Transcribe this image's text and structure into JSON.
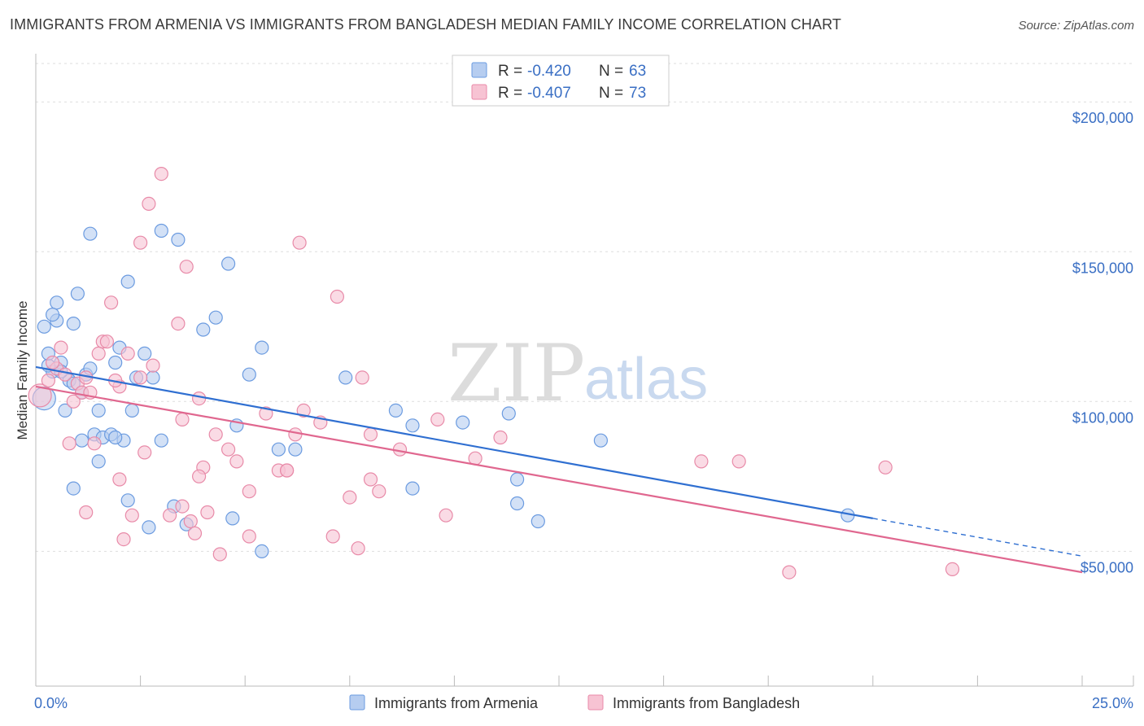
{
  "header": {
    "title": "IMMIGRANTS FROM ARMENIA VS IMMIGRANTS FROM BANGLADESH MEDIAN FAMILY INCOME CORRELATION CHART",
    "source": "Source: ZipAtlas.com"
  },
  "watermark": {
    "zip": "ZIP",
    "atlas": "atlas"
  },
  "chart_data": {
    "type": "scatter",
    "title": "IMMIGRANTS FROM ARMENIA VS IMMIGRANTS FROM BANGLADESH MEDIAN FAMILY INCOME CORRELATION CHART",
    "ylabel": "Median Family Income",
    "xlim": [
      0,
      25
    ],
    "ylim": [
      5000,
      215000
    ],
    "y_ticks": [
      {
        "value": 50000,
        "label": "$50,000"
      },
      {
        "value": 100000,
        "label": "$100,000"
      },
      {
        "value": 150000,
        "label": "$150,000"
      },
      {
        "value": 200000,
        "label": "$200,000"
      }
    ],
    "x_tick_labels": {
      "left": "0.0%",
      "right": "25.0%"
    },
    "x_minor_ticks": [
      0,
      2.5,
      5,
      7.5,
      10,
      12.5,
      15,
      17.5,
      20,
      22.5,
      25
    ],
    "grid": true,
    "legend_position": "top-center",
    "legend": [
      {
        "r_label": "R = ",
        "r_value": "-0.420",
        "n_label": "N = ",
        "n_value": "63"
      },
      {
        "r_label": "R = ",
        "r_value": "-0.407",
        "n_label": "N = ",
        "n_value": "73"
      }
    ],
    "series": [
      {
        "name": "Immigrants from Armenia",
        "color": "#6b9be0",
        "fill": "#b6cdf0",
        "trend_color": "#2f6fd1",
        "trend": {
          "x0": 0,
          "y0": 111500,
          "x1": 20,
          "y1": 61000,
          "dash_to_x": 25,
          "dash_to_y": 48400
        },
        "points": [
          [
            0.2,
            101000
          ],
          [
            0.4,
            110000
          ],
          [
            0.3,
            112000
          ],
          [
            0.5,
            133000
          ],
          [
            0.8,
            107000
          ],
          [
            0.6,
            113000
          ],
          [
            0.9,
            106000
          ],
          [
            0.5,
            127000
          ],
          [
            0.3,
            116000
          ],
          [
            0.2,
            125000
          ],
          [
            0.4,
            129000
          ],
          [
            0.6,
            110000
          ],
          [
            0.9,
            126000
          ],
          [
            1.0,
            136000
          ],
          [
            1.2,
            109000
          ],
          [
            1.1,
            103000
          ],
          [
            1.3,
            111000
          ],
          [
            1.5,
            97000
          ],
          [
            1.4,
            89000
          ],
          [
            1.6,
            88000
          ],
          [
            1.8,
            89000
          ],
          [
            2.0,
            118000
          ],
          [
            1.9,
            113000
          ],
          [
            2.1,
            87000
          ],
          [
            1.3,
            156000
          ],
          [
            2.2,
            140000
          ],
          [
            2.3,
            97000
          ],
          [
            2.4,
            108000
          ],
          [
            2.6,
            116000
          ],
          [
            2.8,
            108000
          ],
          [
            3.0,
            157000
          ],
          [
            3.4,
            154000
          ],
          [
            3.0,
            87000
          ],
          [
            4.0,
            124000
          ],
          [
            4.3,
            128000
          ],
          [
            4.6,
            146000
          ],
          [
            4.8,
            92000
          ],
          [
            5.1,
            109000
          ],
          [
            5.4,
            118000
          ],
          [
            5.8,
            84000
          ],
          [
            6.2,
            84000
          ],
          [
            7.4,
            108000
          ],
          [
            8.6,
            97000
          ],
          [
            9.0,
            92000
          ],
          [
            10.2,
            93000
          ],
          [
            11.3,
            96000
          ],
          [
            13.5,
            87000
          ],
          [
            1.5,
            80000
          ],
          [
            0.9,
            71000
          ],
          [
            2.2,
            67000
          ],
          [
            2.7,
            58000
          ],
          [
            3.3,
            65000
          ],
          [
            3.6,
            59000
          ],
          [
            4.7,
            61000
          ],
          [
            5.4,
            50000
          ],
          [
            9.0,
            71000
          ],
          [
            11.5,
            74000
          ],
          [
            12.0,
            60000
          ],
          [
            11.5,
            66000
          ],
          [
            1.1,
            87000
          ],
          [
            0.7,
            97000
          ],
          [
            1.9,
            88000
          ],
          [
            19.4,
            62000
          ]
        ]
      },
      {
        "name": "Immigrants from Bangladesh",
        "color": "#e88aa8",
        "fill": "#f7c3d3",
        "trend_color": "#e0678f",
        "trend": {
          "x0": 0,
          "y0": 105000,
          "x1": 25,
          "y1": 43000
        },
        "points": [
          [
            0.1,
            102000
          ],
          [
            0.3,
            107000
          ],
          [
            0.5,
            111000
          ],
          [
            0.7,
            109000
          ],
          [
            0.9,
            100000
          ],
          [
            1.0,
            106000
          ],
          [
            1.2,
            108000
          ],
          [
            1.1,
            103000
          ],
          [
            0.4,
            113000
          ],
          [
            0.6,
            118000
          ],
          [
            1.5,
            116000
          ],
          [
            1.6,
            120000
          ],
          [
            1.7,
            120000
          ],
          [
            1.8,
            133000
          ],
          [
            2.0,
            105000
          ],
          [
            1.9,
            107000
          ],
          [
            2.2,
            116000
          ],
          [
            2.5,
            108000
          ],
          [
            2.8,
            112000
          ],
          [
            2.5,
            153000
          ],
          [
            2.7,
            166000
          ],
          [
            3.0,
            176000
          ],
          [
            3.4,
            126000
          ],
          [
            3.6,
            145000
          ],
          [
            3.9,
            101000
          ],
          [
            3.5,
            94000
          ],
          [
            4.0,
            78000
          ],
          [
            4.3,
            89000
          ],
          [
            4.6,
            84000
          ],
          [
            4.8,
            80000
          ],
          [
            5.1,
            70000
          ],
          [
            5.5,
            96000
          ],
          [
            5.8,
            77000
          ],
          [
            6.0,
            77000
          ],
          [
            6.2,
            89000
          ],
          [
            6.4,
            97000
          ],
          [
            6.8,
            93000
          ],
          [
            7.2,
            135000
          ],
          [
            7.5,
            68000
          ],
          [
            7.8,
            108000
          ],
          [
            8.0,
            89000
          ],
          [
            8.2,
            70000
          ],
          [
            8.7,
            84000
          ],
          [
            9.6,
            94000
          ],
          [
            9.8,
            62000
          ],
          [
            10.5,
            81000
          ],
          [
            11.1,
            88000
          ],
          [
            1.3,
            103000
          ],
          [
            1.4,
            86000
          ],
          [
            0.8,
            86000
          ],
          [
            2.0,
            74000
          ],
          [
            2.3,
            62000
          ],
          [
            2.6,
            83000
          ],
          [
            3.2,
            62000
          ],
          [
            3.5,
            65000
          ],
          [
            3.9,
            75000
          ],
          [
            3.7,
            60000
          ],
          [
            4.4,
            49000
          ],
          [
            4.1,
            63000
          ],
          [
            5.1,
            55000
          ],
          [
            6.3,
            153000
          ],
          [
            6.0,
            77000
          ],
          [
            7.1,
            55000
          ],
          [
            7.7,
            51000
          ],
          [
            8.0,
            74000
          ],
          [
            3.8,
            56000
          ],
          [
            15.9,
            80000
          ],
          [
            16.8,
            80000
          ],
          [
            18.0,
            43000
          ],
          [
            20.3,
            78000
          ],
          [
            21.9,
            44000
          ],
          [
            1.2,
            63000
          ],
          [
            2.1,
            54000
          ]
        ]
      }
    ]
  }
}
